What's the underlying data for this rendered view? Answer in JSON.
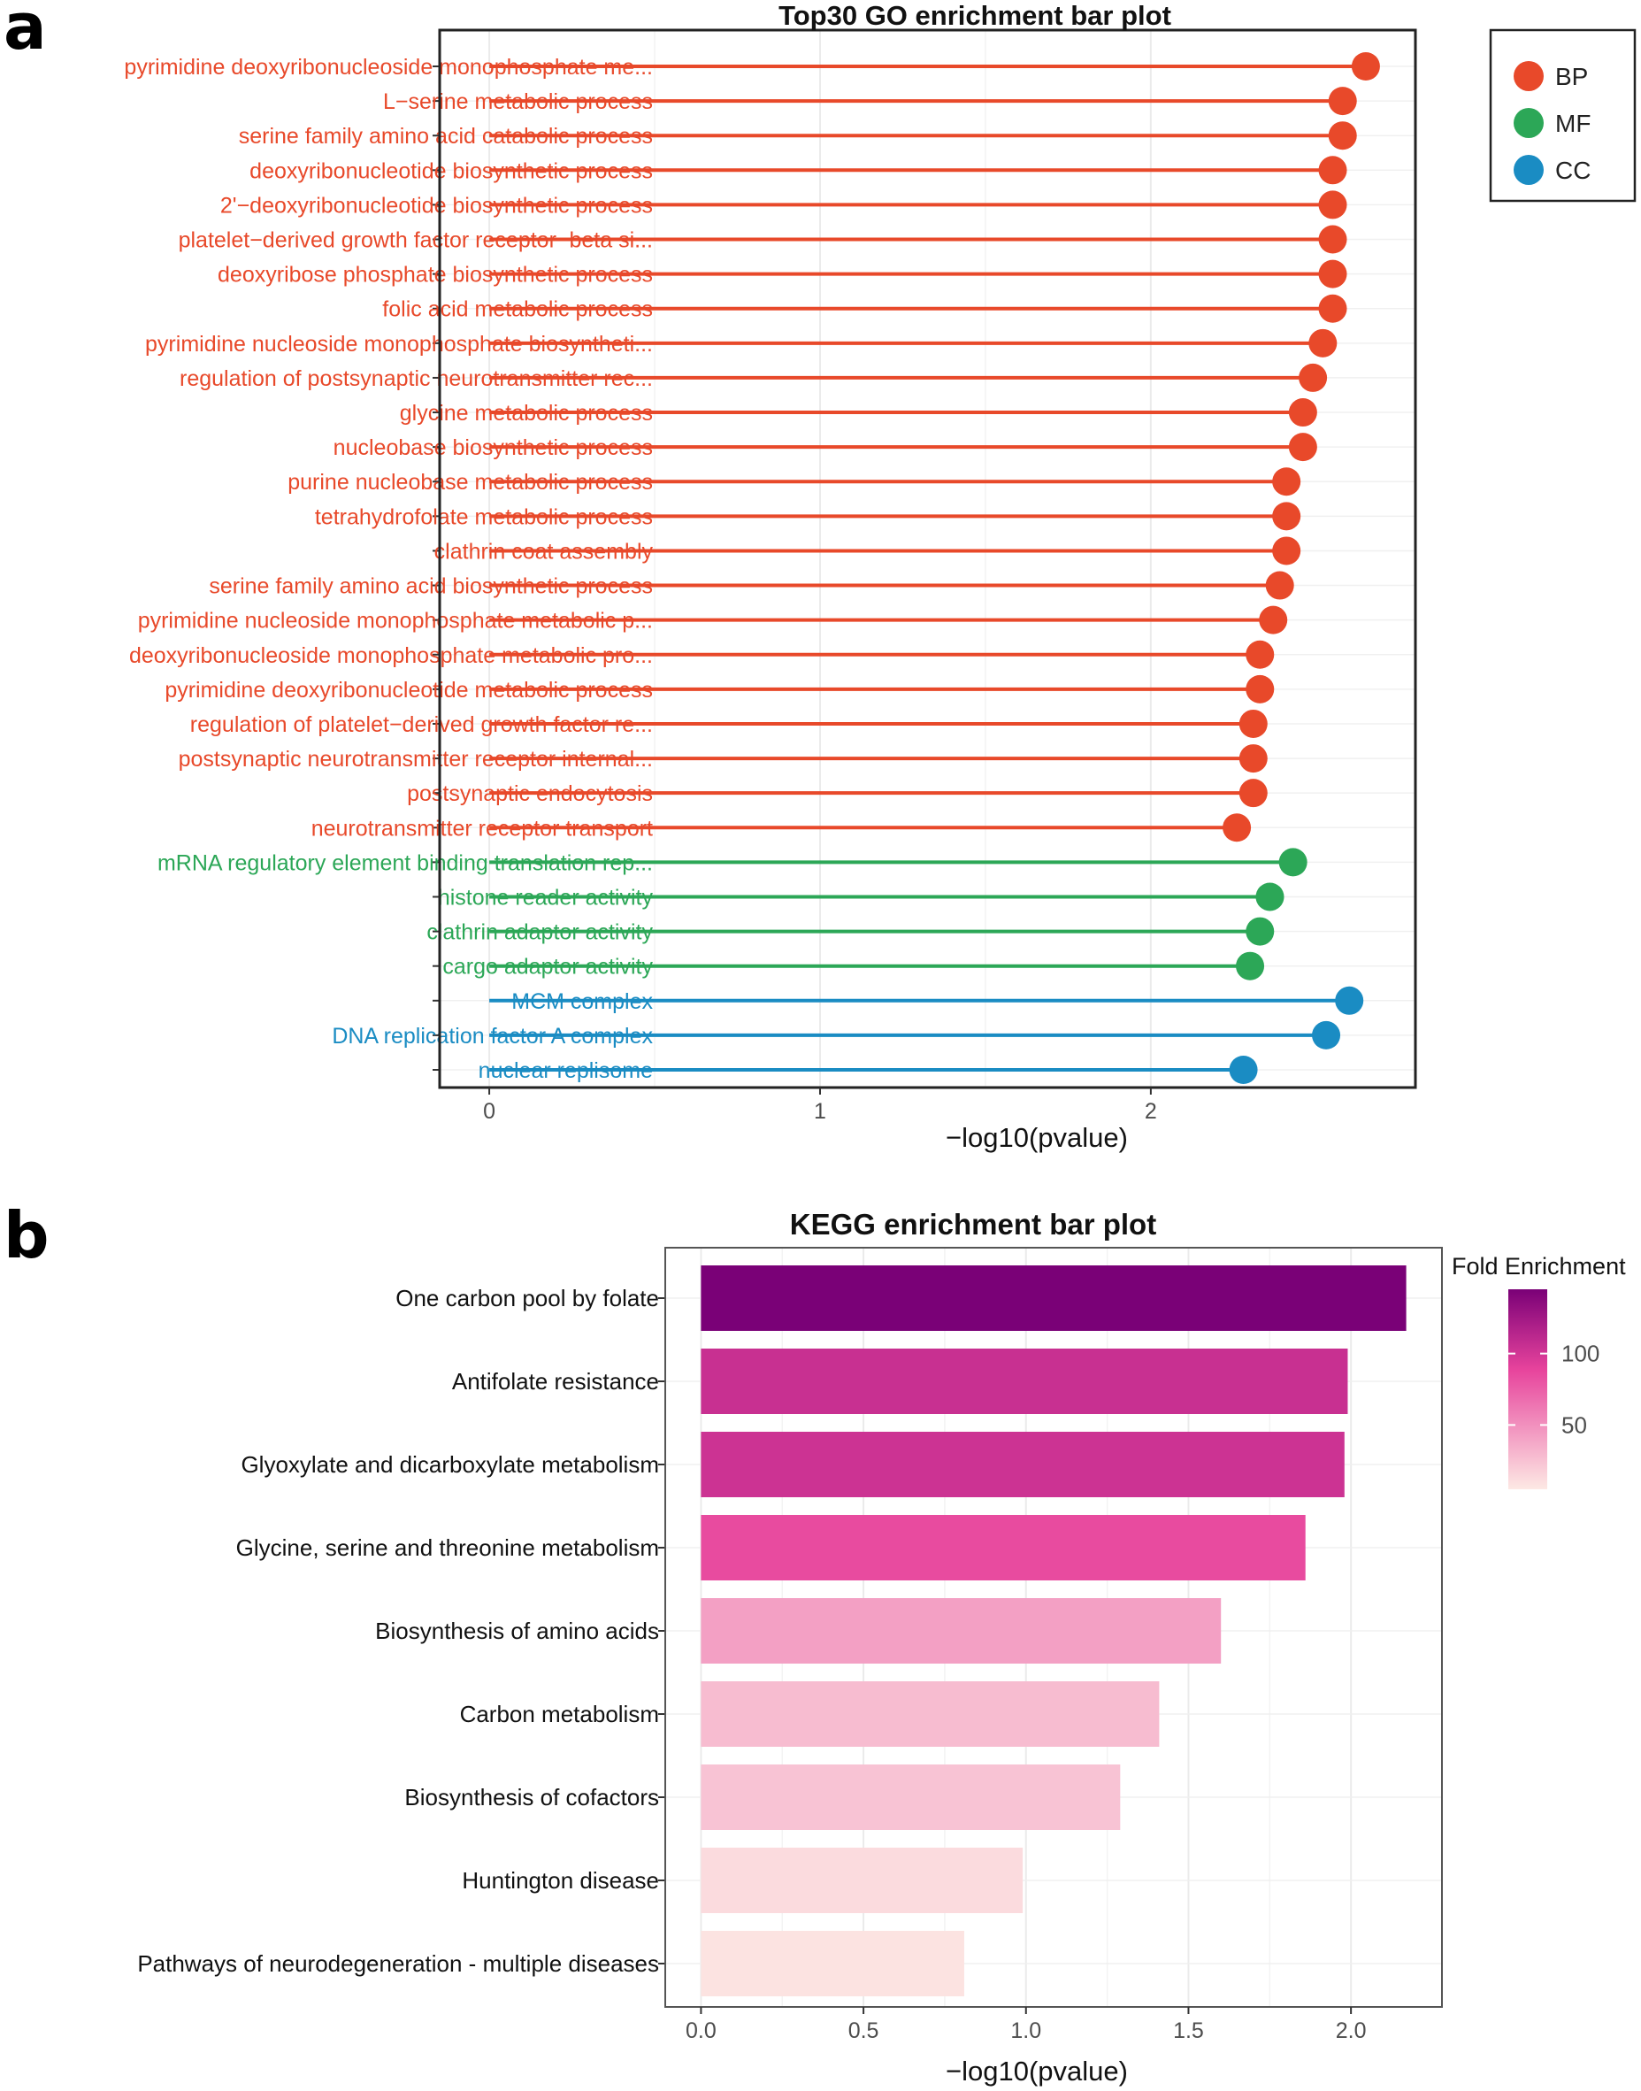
{
  "panels": {
    "a": "a",
    "b": "b"
  },
  "chart_data": [
    {
      "type": "lollipop",
      "title": "Top30 GO enrichment bar plot",
      "xlabel": "−log10(pvalue)",
      "ylabel": "",
      "xlim": [
        -0.15,
        2.8
      ],
      "xticks": [
        0,
        1,
        2
      ],
      "grid": true,
      "legend_position": "top-right",
      "colors": {
        "BP": "#E8492A",
        "MF": "#2CA757",
        "CC": "#1A8CC3"
      },
      "legend": [
        {
          "key": "BP",
          "label": "BP"
        },
        {
          "key": "MF",
          "label": "MF"
        },
        {
          "key": "CC",
          "label": "CC"
        }
      ],
      "items": [
        {
          "label": "pyrimidine deoxyribonucleoside monophosphate me...",
          "value": 2.65,
          "category": "BP"
        },
        {
          "label": "L−serine metabolic process",
          "value": 2.58,
          "category": "BP"
        },
        {
          "label": "serine family amino acid catabolic process",
          "value": 2.58,
          "category": "BP"
        },
        {
          "label": "deoxyribonucleotide biosynthetic process",
          "value": 2.55,
          "category": "BP"
        },
        {
          "label": "2'−deoxyribonucleotide biosynthetic process",
          "value": 2.55,
          "category": "BP"
        },
        {
          "label": "platelet−derived growth factor receptor−beta si...",
          "value": 2.55,
          "category": "BP"
        },
        {
          "label": "deoxyribose phosphate biosynthetic process",
          "value": 2.55,
          "category": "BP"
        },
        {
          "label": "folic acid metabolic process",
          "value": 2.55,
          "category": "BP"
        },
        {
          "label": "pyrimidine nucleoside monophosphate biosyntheti...",
          "value": 2.52,
          "category": "BP"
        },
        {
          "label": "regulation of postsynaptic neurotransmitter rec...",
          "value": 2.49,
          "category": "BP"
        },
        {
          "label": "glycine metabolic process",
          "value": 2.46,
          "category": "BP"
        },
        {
          "label": "nucleobase biosynthetic process",
          "value": 2.46,
          "category": "BP"
        },
        {
          "label": "purine nucleobase metabolic process",
          "value": 2.41,
          "category": "BP"
        },
        {
          "label": "tetrahydrofolate metabolic process",
          "value": 2.41,
          "category": "BP"
        },
        {
          "label": "clathrin coat assembly",
          "value": 2.41,
          "category": "BP"
        },
        {
          "label": "serine family amino acid biosynthetic process",
          "value": 2.39,
          "category": "BP"
        },
        {
          "label": "pyrimidine nucleoside monophosphate metabolic p...",
          "value": 2.37,
          "category": "BP"
        },
        {
          "label": "deoxyribonucleoside monophosphate metabolic pro...",
          "value": 2.33,
          "category": "BP"
        },
        {
          "label": "pyrimidine deoxyribonucleotide metabolic process",
          "value": 2.33,
          "category": "BP"
        },
        {
          "label": "regulation of platelet−derived growth factor re...",
          "value": 2.31,
          "category": "BP"
        },
        {
          "label": "postsynaptic neurotransmitter receptor internal...",
          "value": 2.31,
          "category": "BP"
        },
        {
          "label": "postsynaptic endocytosis",
          "value": 2.31,
          "category": "BP"
        },
        {
          "label": "neurotransmitter receptor transport",
          "value": 2.26,
          "category": "BP"
        },
        {
          "label": "mRNA regulatory element binding translation rep...",
          "value": 2.43,
          "category": "MF"
        },
        {
          "label": "histone reader activity",
          "value": 2.36,
          "category": "MF"
        },
        {
          "label": "clathrin adaptor activity",
          "value": 2.33,
          "category": "MF"
        },
        {
          "label": "cargo adaptor activity",
          "value": 2.3,
          "category": "MF"
        },
        {
          "label": "MCM complex",
          "value": 2.6,
          "category": "CC"
        },
        {
          "label": "DNA replication factor A complex",
          "value": 2.53,
          "category": "CC"
        },
        {
          "label": "nuclear replisome",
          "value": 2.28,
          "category": "CC"
        }
      ]
    },
    {
      "type": "bar",
      "orientation": "horizontal",
      "title": "KEGG enrichment bar plot",
      "xlabel": "−log10(pvalue)",
      "ylabel": "",
      "xlim": [
        -0.11,
        2.28
      ],
      "xticks": [
        0.0,
        0.5,
        1.0,
        1.5,
        2.0
      ],
      "xtick_labels": [
        "0.0",
        "0.5",
        "1.0",
        "1.5",
        "2.0"
      ],
      "grid": true,
      "legend_position": "top-right",
      "categories": [
        "One carbon pool by folate",
        "Antifolate resistance",
        "Glyoxylate and dicarboxylate metabolism",
        "Glycine, serine and threonine metabolism",
        "Biosynthesis of amino acids",
        "Carbon metabolism",
        "Biosynthesis of cofactors",
        "Huntington disease",
        "Pathways of neurodegeneration - multiple diseases"
      ],
      "values": [
        2.17,
        1.99,
        1.98,
        1.86,
        1.6,
        1.41,
        1.29,
        0.99,
        0.81
      ],
      "fold_enrichment": [
        145,
        105,
        103,
        85,
        42,
        28,
        24,
        12,
        8
      ],
      "colorbar": {
        "title": "Fold Enrichment",
        "min": 5,
        "max": 145,
        "ticks": [
          50,
          100
        ],
        "tick_labels": [
          "50",
          "100"
        ],
        "color_low": "#FDE9E4",
        "color_high": "#7A0177"
      }
    }
  ]
}
